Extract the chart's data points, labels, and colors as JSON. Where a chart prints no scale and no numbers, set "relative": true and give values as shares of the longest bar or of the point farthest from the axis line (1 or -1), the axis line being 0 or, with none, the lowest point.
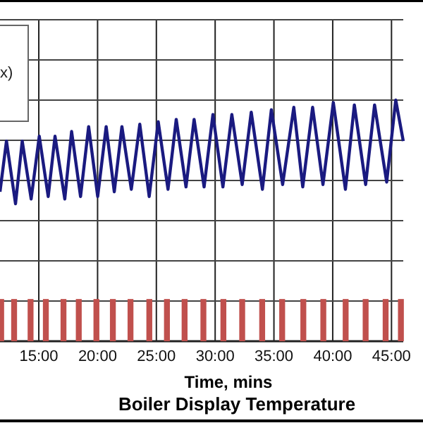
{
  "chart_data": {
    "type": "line",
    "title": "Boiler Display Temperature",
    "xlabel": "Time, mins",
    "relative": true,
    "grid": true,
    "annotations": [
      "x)"
    ],
    "xlim": [
      11.7,
      46
    ],
    "xticks": [
      {
        "value": 15,
        "label": "15:00"
      },
      {
        "value": 20,
        "label": "20:00"
      },
      {
        "value": 25,
        "label": "25:00"
      },
      {
        "value": 30,
        "label": "30:00"
      },
      {
        "value": 35,
        "label": "35:00"
      },
      {
        "value": 40,
        "label": "40:00"
      },
      {
        "value": 45,
        "label": "45:00"
      }
    ],
    "series": [
      {
        "color": "#1a1a80",
        "x": [
          11.7,
          12.25,
          13.02,
          13.59,
          14.35,
          15.04,
          15.8,
          16.38,
          17.21,
          17.79,
          18.55,
          19.24,
          20.01,
          20.73,
          21.42,
          22.07,
          22.87,
          23.59,
          24.39,
          25.16,
          25.99,
          26.69,
          27.52,
          28.21,
          29.06,
          29.81,
          30.66,
          31.42,
          32.3,
          33.07,
          34.02,
          34.78,
          35.74,
          36.69,
          37.45,
          38.29,
          39.17,
          40.05,
          41.08,
          41.84,
          42.8,
          43.56,
          44.59,
          45.36,
          46
        ],
        "values": [
          0.62,
          0.83,
          0.57,
          0.83,
          0.59,
          0.85,
          0.6,
          0.85,
          0.59,
          0.87,
          0.6,
          0.89,
          0.6,
          0.89,
          0.62,
          0.89,
          0.63,
          0.9,
          0.6,
          0.91,
          0.63,
          0.92,
          0.64,
          0.92,
          0.64,
          0.94,
          0.64,
          0.94,
          0.65,
          0.95,
          0.63,
          0.96,
          0.65,
          0.97,
          0.64,
          0.97,
          0.65,
          0.99,
          0.63,
          0.98,
          0.65,
          0.98,
          0.66,
          1,
          0.83
        ]
      },
      {
        "type": "bar",
        "color": "#c0504d",
        "x": [
          11.8,
          12.9,
          14.3,
          15.6,
          17.1,
          18.4,
          19.9,
          21.3,
          22.8,
          24.4,
          25.9,
          27.4,
          29,
          30.7,
          32.3,
          34,
          35.7,
          37.5,
          39.2,
          41.1,
          42.8,
          44.5,
          45.8
        ],
        "values": [
          0.175,
          0.175,
          0.175,
          0.175,
          0.175,
          0.175,
          0.175,
          0.175,
          0.175,
          0.175,
          0.175,
          0.175,
          0.175,
          0.175,
          0.175,
          0.175,
          0.175,
          0.175,
          0.175,
          0.175,
          0.175,
          0.175,
          0.175
        ]
      }
    ]
  }
}
